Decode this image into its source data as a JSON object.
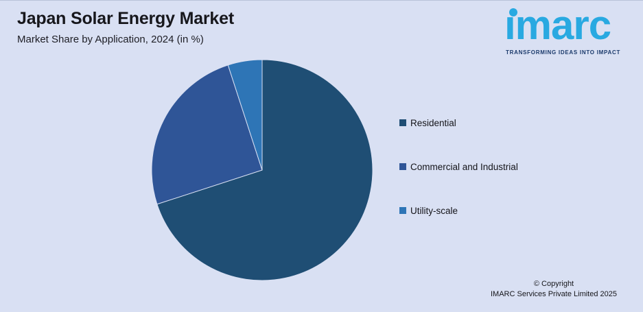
{
  "header": {
    "title": "Japan Solar Energy Market",
    "subtitle": "Market Share by Application, 2024 (in %)"
  },
  "logo": {
    "wordmark": "imarc",
    "tagline": "TRANSFORMING IDEAS INTO IMPACT"
  },
  "chart_data": {
    "type": "pie",
    "title": "Japan Solar Energy Market",
    "subtitle": "Market Share by Application, 2024 (in %)",
    "categories": [
      "Residential",
      "Commercial and Industrial",
      "Utility-scale"
    ],
    "values": [
      70,
      25,
      5
    ],
    "unit": "%",
    "colors": [
      "#1f4e74",
      "#2f5597",
      "#2e75b6"
    ],
    "start_angle_deg": 0,
    "direction": "clockwise",
    "legend_position": "right",
    "data_labels_shown": false
  },
  "footer": {
    "copyright_line1": "© Copyright",
    "copyright_line2": "IMARC Services Private Limited 2025"
  },
  "theme": {
    "background": "#d9e0f3",
    "logo_blue": "#29a9e1",
    "logo_navy": "#1b3a6b",
    "text": "#17171c"
  }
}
